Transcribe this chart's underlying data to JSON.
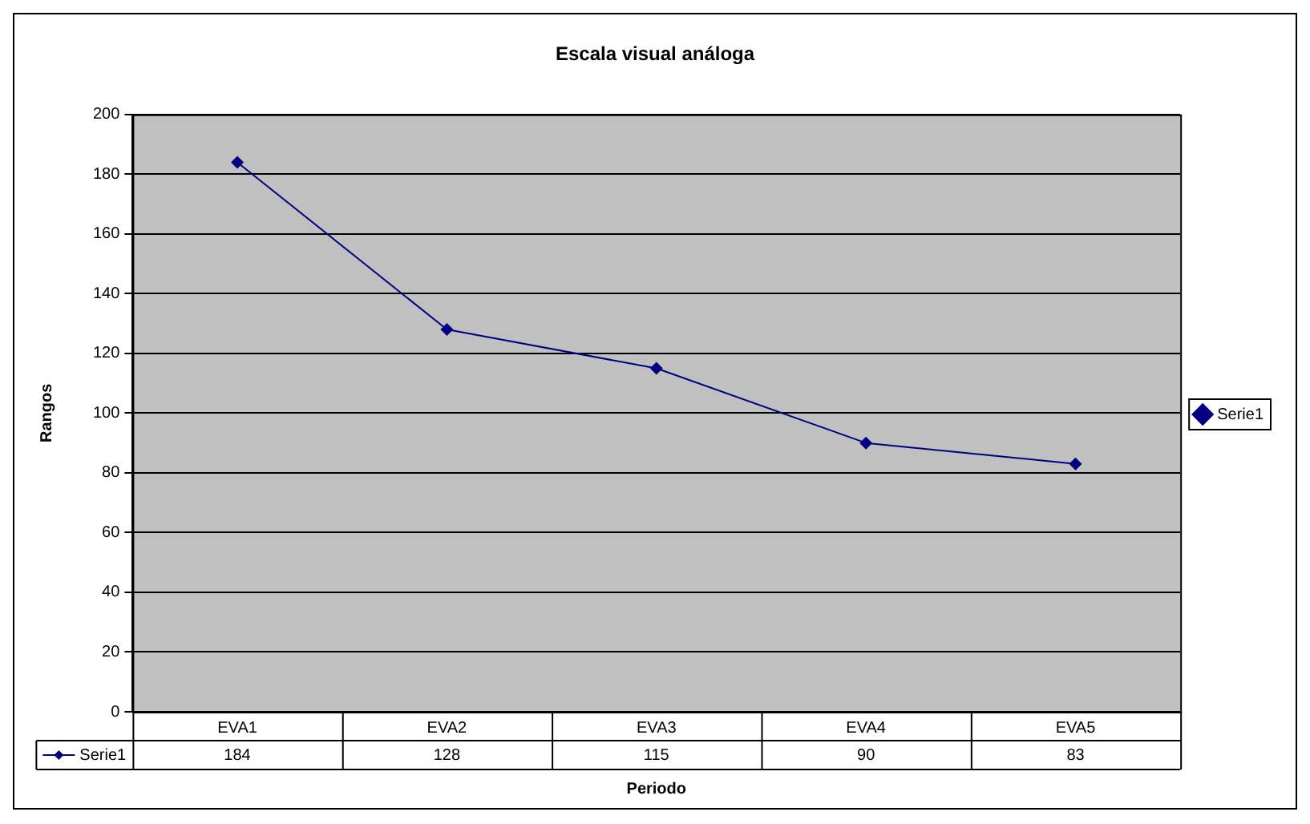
{
  "chart_data": {
    "type": "line",
    "title": "Escala visual análoga",
    "xlabel": "Periodo",
    "ylabel": "Rangos",
    "categories": [
      "EVA1",
      "EVA2",
      "EVA3",
      "EVA4",
      "EVA5"
    ],
    "series": [
      {
        "name": "Serie1",
        "color": "#000080",
        "values": [
          184,
          128,
          115,
          90,
          83
        ]
      }
    ],
    "ylim": [
      0,
      200
    ],
    "yticks": [
      0,
      20,
      40,
      60,
      80,
      100,
      120,
      140,
      160,
      180,
      200
    ],
    "grid": "y",
    "legend": "right",
    "marker": "diamond",
    "line_style": "solid",
    "data_labels": true
  }
}
